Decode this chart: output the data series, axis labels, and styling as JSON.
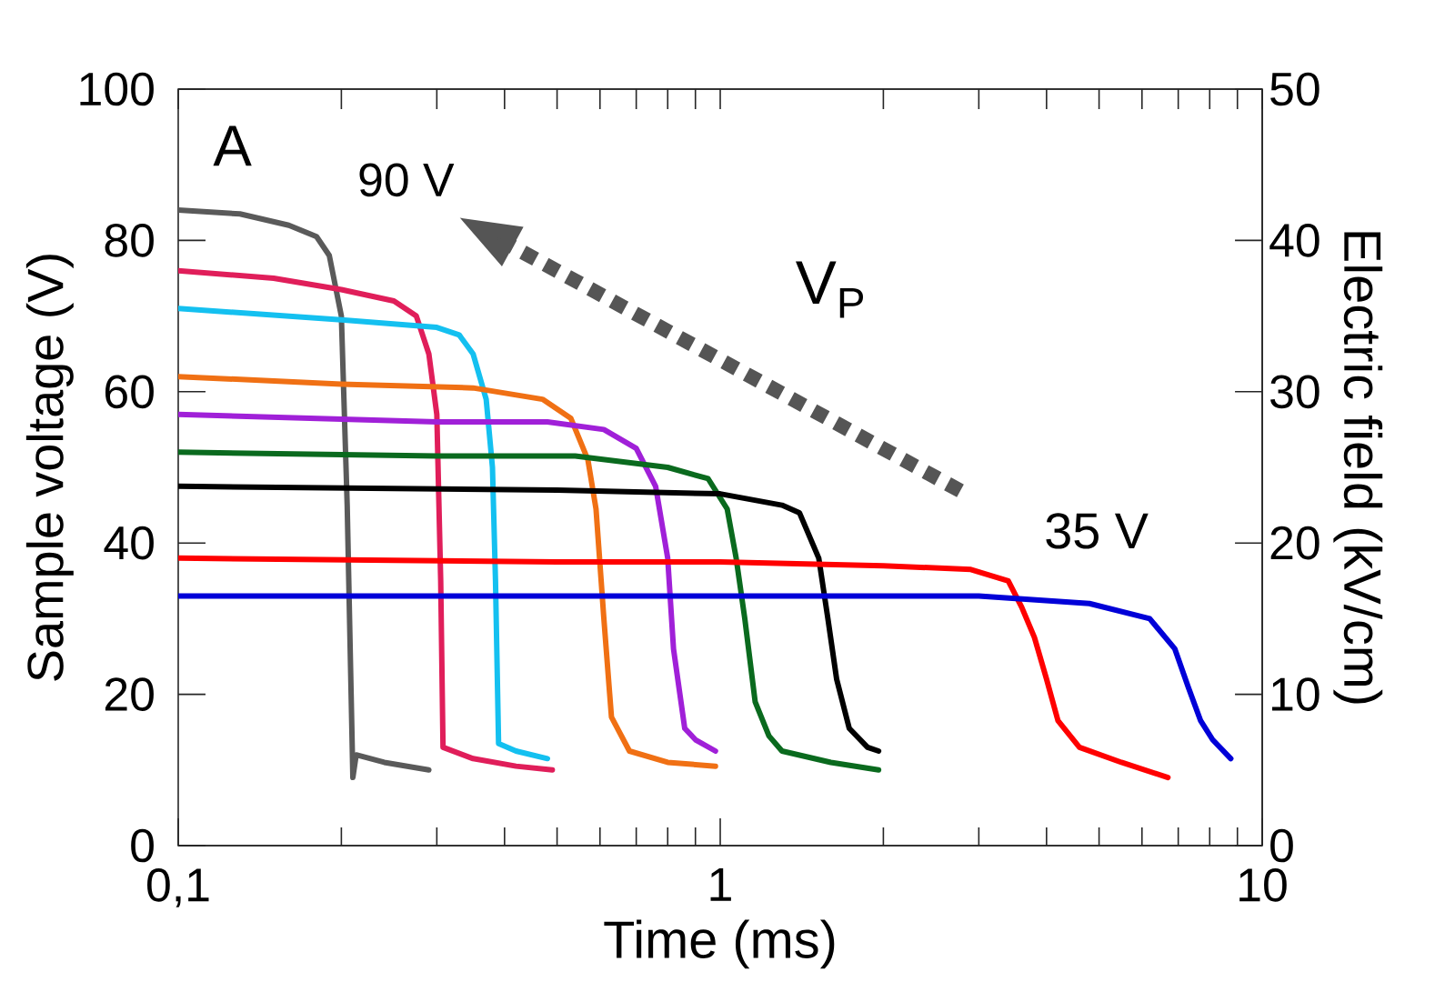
{
  "chart_data": {
    "type": "line",
    "xlabel": "Time (ms)",
    "ylabel": "Sample voltage (V)",
    "y2label": "Electric field (kV/cm)",
    "log": "x",
    "xlim": [
      0.1,
      10
    ],
    "xticks": [
      {
        "value": 0.1,
        "label": "0,1"
      },
      1,
      10
    ],
    "ylim": [
      0,
      100
    ],
    "yticks": [
      0,
      20,
      40,
      60,
      80,
      100
    ],
    "y2lim": [
      0,
      50
    ],
    "y2ticks": [
      0,
      10,
      20,
      30,
      40,
      50
    ],
    "annotations": [
      "A",
      "90 V",
      "V$_{P}$",
      "35 V"
    ],
    "series": [
      {
        "color": "#5a5a5a",
        "x": [
          0.1,
          0.13,
          0.16,
          0.18,
          0.19,
          0.2,
          0.205,
          0.21,
          0.213,
          0.24,
          0.29
        ],
        "values": [
          84,
          83.5,
          82,
          80.5,
          78,
          70,
          45,
          9,
          12,
          11,
          10
        ]
      },
      {
        "color": "#e01e5a",
        "x": [
          0.1,
          0.15,
          0.2,
          0.25,
          0.275,
          0.29,
          0.3,
          0.305,
          0.308,
          0.35,
          0.42,
          0.49
        ],
        "values": [
          76,
          75,
          73.5,
          72,
          70,
          65,
          57,
          35,
          13,
          11.5,
          10.5,
          10
        ]
      },
      {
        "color": "#14c0f0",
        "x": [
          0.1,
          0.2,
          0.3,
          0.33,
          0.35,
          0.37,
          0.38,
          0.385,
          0.39,
          0.42,
          0.48
        ],
        "values": [
          71,
          69.5,
          68.5,
          67.5,
          65,
          59,
          50,
          35,
          13.5,
          12.5,
          11.5
        ]
      },
      {
        "color": "#f07014",
        "x": [
          0.1,
          0.2,
          0.35,
          0.47,
          0.53,
          0.57,
          0.59,
          0.61,
          0.63,
          0.68,
          0.8,
          0.98
        ],
        "values": [
          62,
          61,
          60.5,
          59,
          56.5,
          51,
          44.5,
          30,
          17,
          12.5,
          11,
          10.5
        ]
      },
      {
        "color": "#a020d8",
        "x": [
          0.1,
          0.3,
          0.48,
          0.61,
          0.7,
          0.76,
          0.8,
          0.82,
          0.86,
          0.9,
          0.98
        ],
        "values": [
          57,
          56,
          56,
          55,
          52.5,
          47.5,
          38,
          26,
          15.5,
          14,
          12.5
        ]
      },
      {
        "color": "#0a6a1e",
        "x": [
          0.1,
          0.3,
          0.54,
          0.8,
          0.95,
          1.03,
          1.07,
          1.11,
          1.16,
          1.23,
          1.3,
          1.6,
          1.96
        ],
        "values": [
          52,
          51.5,
          51.5,
          50,
          48.5,
          44.5,
          38,
          30,
          19,
          14.5,
          12.5,
          11,
          10
        ]
      },
      {
        "color": "#000000",
        "x": [
          0.1,
          0.5,
          1.0,
          1.3,
          1.4,
          1.52,
          1.58,
          1.64,
          1.73,
          1.87,
          1.96
        ],
        "values": [
          47.5,
          47,
          46.5,
          45,
          44,
          38,
          30,
          22,
          15.5,
          13,
          12.5
        ]
      },
      {
        "color": "#ff0000",
        "x": [
          0.1,
          0.5,
          1,
          2,
          2.9,
          3.4,
          3.6,
          3.8,
          4.0,
          4.2,
          4.6,
          5.5,
          6.7
        ],
        "values": [
          38,
          37.5,
          37.5,
          37,
          36.5,
          35,
          31.5,
          27.5,
          22,
          16.5,
          13,
          11,
          9
        ]
      },
      {
        "color": "#0000d8",
        "x": [
          0.1,
          1,
          3,
          4.8,
          6.2,
          6.9,
          7.3,
          7.7,
          8.1,
          8.75
        ],
        "values": [
          33,
          33,
          33,
          32,
          30,
          26,
          21,
          16.5,
          14,
          11.5
        ]
      }
    ]
  }
}
